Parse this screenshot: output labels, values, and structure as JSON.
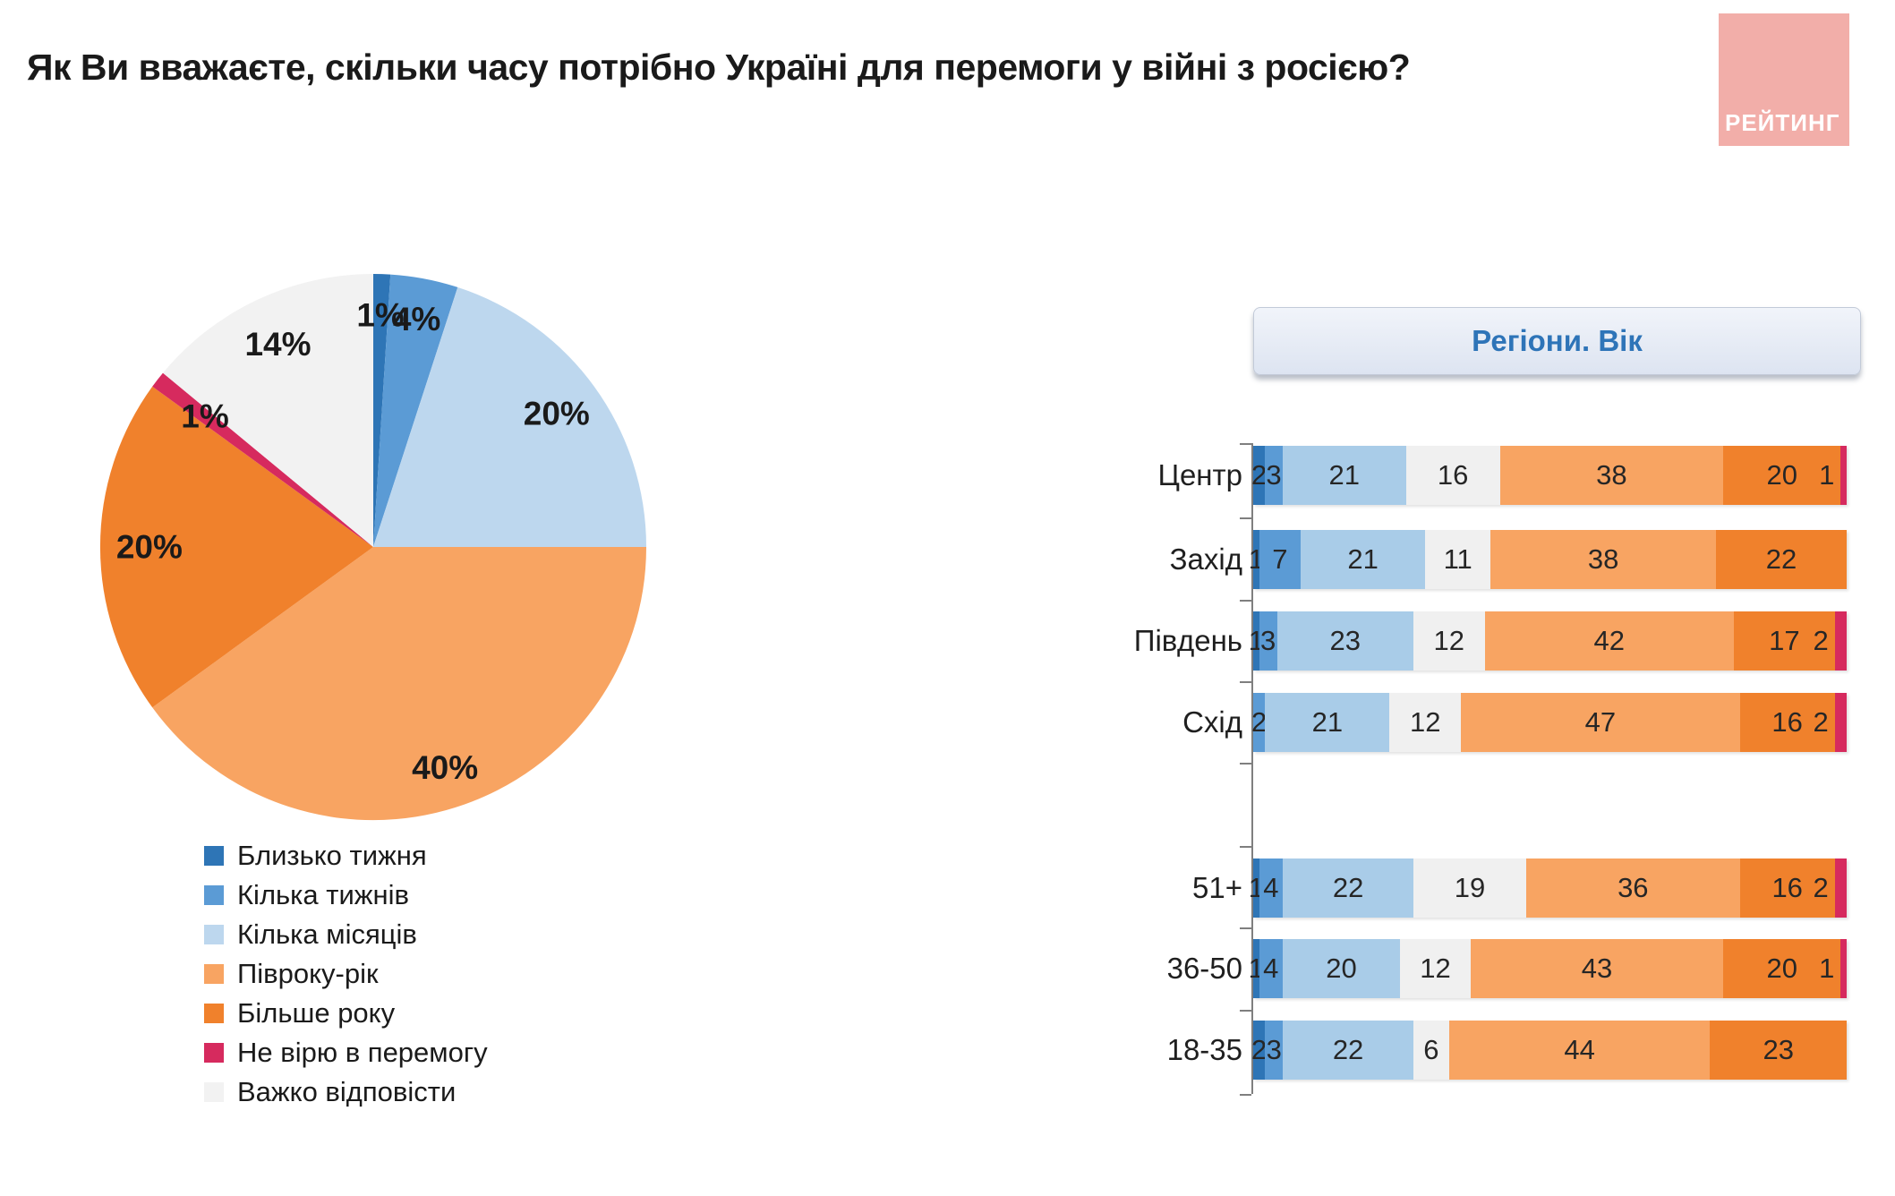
{
  "title": "Як Ви вважаєте, скільки часу потрібно Україні для перемоги у війні з росією?",
  "logo": {
    "text": "РЕЙТИНГ",
    "bg_color": "#f2aea9"
  },
  "panel": {
    "title": "Регіони. Вік"
  },
  "chart_data": [
    {
      "type": "pie",
      "title": "",
      "categories": [
        "Близько тижня",
        "Кілька тижнів",
        "Кілька місяців",
        "Півроку-рік",
        "Більше року",
        "Не вірю в перемогу",
        "Важко відповісти"
      ],
      "values": [
        1,
        4,
        20,
        40,
        20,
        1,
        14
      ],
      "labels": [
        "1%",
        "4%",
        "20%",
        "40%",
        "20%",
        "1%",
        "14%"
      ],
      "colors": [
        "#2e75b6",
        "#5b9bd5",
        "#bdd7ee",
        "#f8a462",
        "#f0812c",
        "#d62a5e",
        "#f2f2f2"
      ],
      "legend_position": "bottom-left",
      "units": "percent"
    },
    {
      "type": "bar",
      "orientation": "horizontal-stacked",
      "title": "Регіони. Вік",
      "categories": [
        "Центр",
        "Захід",
        "Південь",
        "Схід",
        "51+",
        "36-50",
        "18-35"
      ],
      "group_gap_after": "Схід",
      "xlim": [
        0,
        100
      ],
      "units": "percent",
      "series": [
        {
          "name": "Близько тижня",
          "color": "#2e75b6",
          "values": [
            2,
            1,
            1,
            0,
            1,
            1,
            2
          ]
        },
        {
          "name": "Кілька тижнів",
          "color": "#5b9bd5",
          "values": [
            3,
            7,
            3,
            2,
            4,
            4,
            3
          ]
        },
        {
          "name": "Кілька місяців",
          "color": "#a9cce8",
          "values": [
            21,
            21,
            23,
            21,
            22,
            20,
            22
          ]
        },
        {
          "name": "Важко відповісти",
          "color": "#f0f0f0",
          "values": [
            16,
            11,
            12,
            12,
            19,
            12,
            6
          ]
        },
        {
          "name": "Півроку-рік",
          "color": "#f8a462",
          "values": [
            38,
            38,
            42,
            47,
            36,
            43,
            44
          ]
        },
        {
          "name": "Більше року",
          "color": "#f0812c",
          "values": [
            20,
            22,
            17,
            16,
            16,
            20,
            23
          ]
        },
        {
          "name": "Не вірю в перемогу",
          "color": "#d62a5e",
          "values": [
            1,
            0,
            2,
            2,
            2,
            1,
            0
          ]
        }
      ]
    }
  ]
}
